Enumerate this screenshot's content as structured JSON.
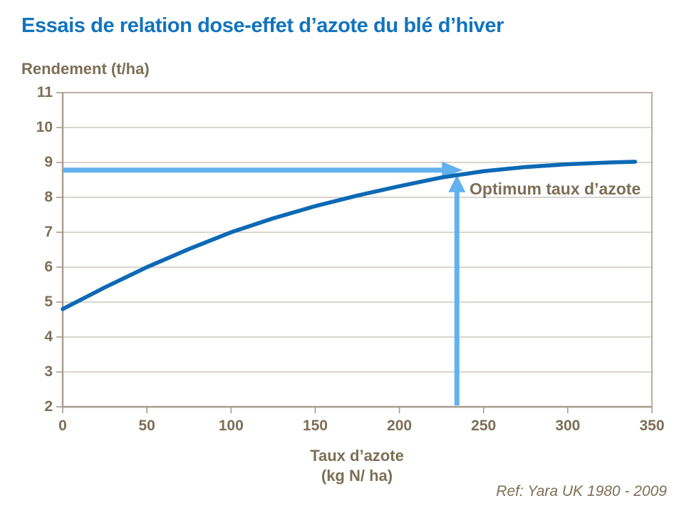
{
  "title": "Essais de relation dose-effet d’azote du blé d’hiver",
  "ref_note": "Ref: Yara UK 1980 - 2009",
  "colors": {
    "background": "#FFFFFF",
    "title": "#1273BE",
    "curve": "#0D69B4",
    "arrow": "#63B1EE",
    "text_brown": "#7D6E57",
    "grid": "#B5AB9C",
    "axis": "#A79C8D"
  },
  "chart_data": {
    "type": "line",
    "title": "Essais de relation dose-effet d’azote du blé d’hiver",
    "ylabel": "Rendement (t/ha)",
    "xlabel_line1": "Taux d’azote",
    "xlabel_line2": "(kg N/ ha)",
    "xlim": [
      0,
      350
    ],
    "ylim": [
      2,
      11
    ],
    "x_ticks": [
      0,
      50,
      100,
      150,
      200,
      250,
      300,
      350
    ],
    "y_ticks": [
      2,
      3,
      4,
      5,
      6,
      7,
      8,
      9,
      10,
      11
    ],
    "grid": "horizontal-only",
    "legend": "none",
    "series": [
      {
        "name": "Rendement",
        "x": [
          0,
          25,
          50,
          75,
          100,
          125,
          150,
          175,
          200,
          225,
          250,
          275,
          300,
          325,
          340
        ],
        "values": [
          4.8,
          5.42,
          6.0,
          6.52,
          7.0,
          7.4,
          7.75,
          8.05,
          8.32,
          8.57,
          8.75,
          8.87,
          8.95,
          9.0,
          9.02
        ]
      }
    ],
    "annotation": {
      "label": "Optimum taux d’azote",
      "optimum_x": 235,
      "curve_y_at_optimum": 8.7,
      "guide_arrow_y": 8.78
    }
  }
}
